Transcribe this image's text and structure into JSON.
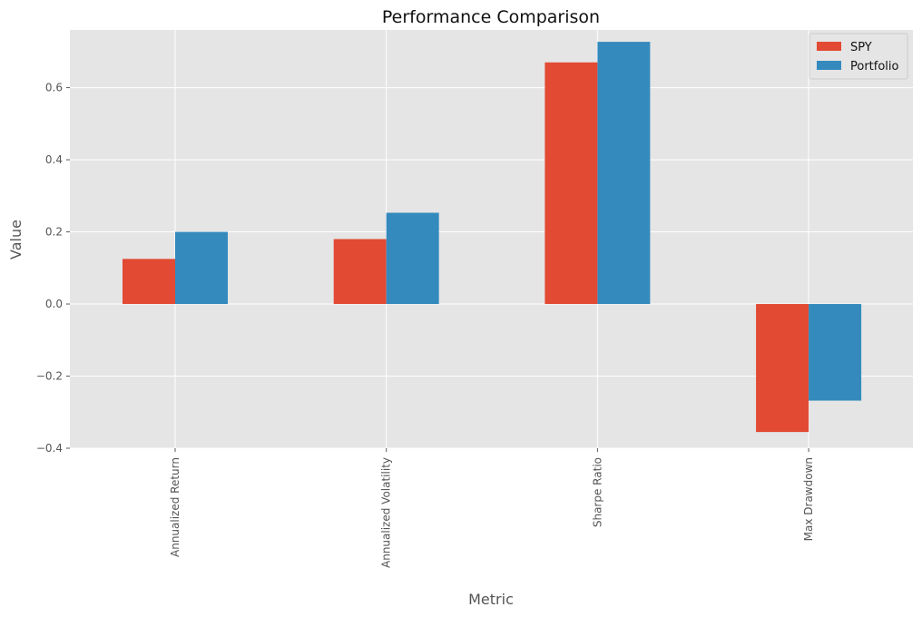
{
  "chart_data": {
    "type": "bar",
    "title": "Performance Comparison",
    "xlabel": "Metric",
    "ylabel": "Value",
    "categories": [
      "Annualized Return",
      "Annualized Volatility",
      "Sharpe Ratio",
      "Max Drawdown"
    ],
    "series": [
      {
        "name": "SPY",
        "color": "#E24A33",
        "values": [
          0.125,
          0.18,
          0.67,
          -0.355
        ]
      },
      {
        "name": "Portfolio",
        "color": "#348ABD",
        "values": [
          0.2,
          0.253,
          0.727,
          -0.268
        ]
      }
    ],
    "yticks": [
      -0.4,
      -0.2,
      0.0,
      0.2,
      0.4,
      0.6
    ],
    "ytick_labels": [
      "−0.4",
      "−0.2",
      "0.0",
      "0.2",
      "0.4",
      "0.6"
    ],
    "ylim": [
      -0.4,
      0.76
    ],
    "grid": true,
    "legend_position": "top-right",
    "background_color": "#E5E5E5",
    "grid_color": "#FFFFFF"
  }
}
